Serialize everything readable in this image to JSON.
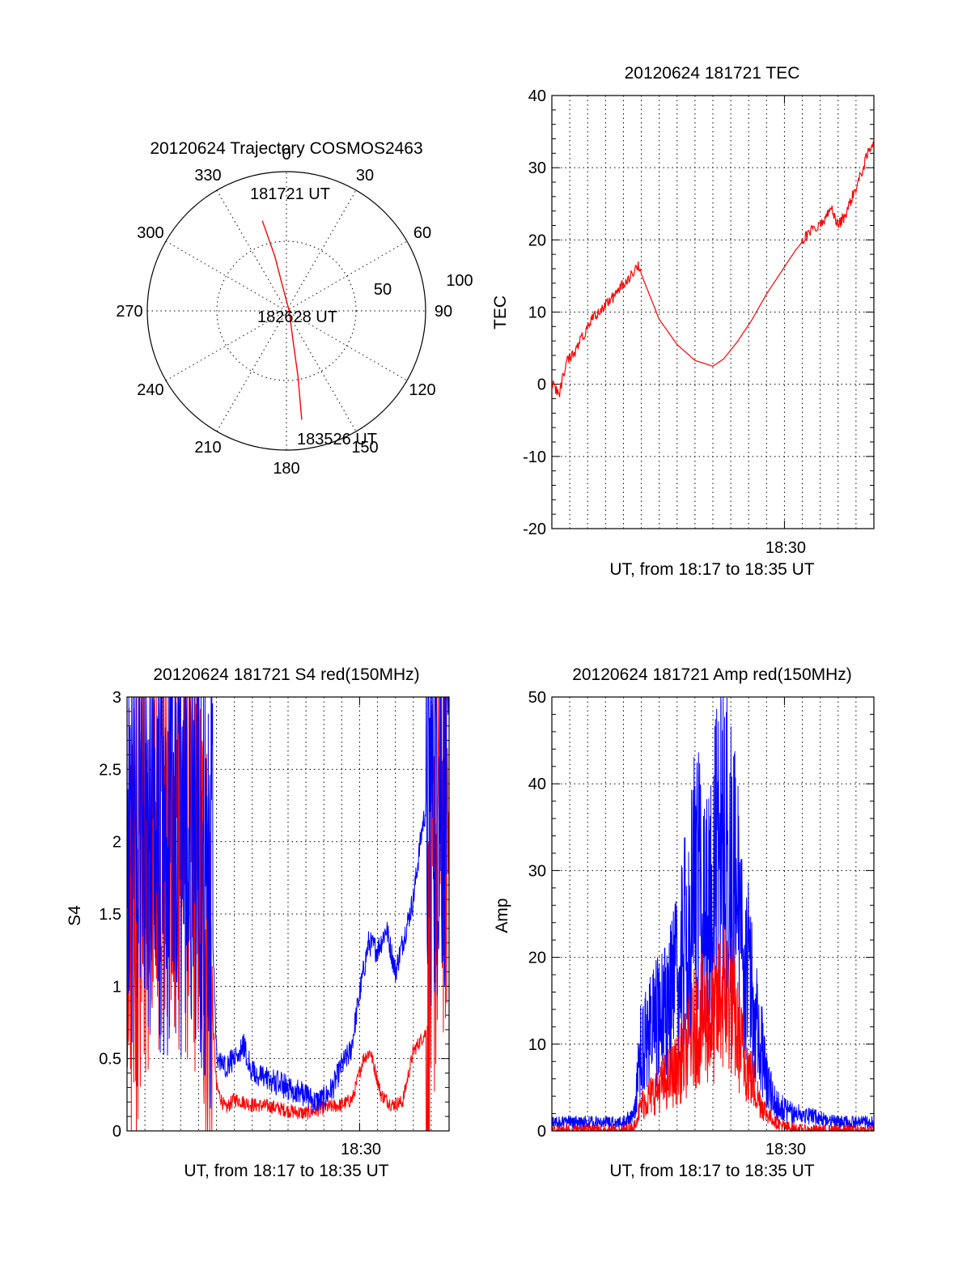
{
  "colors": {
    "red": "#ff0000",
    "blue": "#0000ff",
    "axis": "#000000"
  },
  "chart_data": [
    {
      "type": "polar",
      "title": "20120624 Trajectory COSMOS2463",
      "angle_labels": [
        "0",
        "30",
        "60",
        "90",
        "120",
        "150",
        "180",
        "210",
        "240",
        "270",
        "300",
        "330"
      ],
      "radial_labels": [
        "50",
        "100"
      ],
      "start_label": "181721 UT",
      "mid_label": "182628 UT",
      "end_label": "183526 UT",
      "series": [
        {
          "color": "red",
          "points": [
            [
              -15,
              67
            ],
            [
              -12,
              40
            ],
            [
              -9,
              18
            ],
            [
              90,
              2
            ],
            [
              167,
              20
            ],
            [
              170,
              48
            ],
            [
              172,
              79
            ]
          ]
        }
      ]
    },
    {
      "type": "line",
      "title": "20120624 181721 TEC",
      "ylabel": "TEC",
      "xlabel": "UT, from 18:17 to 18:35 UT",
      "xtick_label": "18:30",
      "xlim": [
        0,
        18
      ],
      "ylim": [
        -20,
        40
      ],
      "yticks": [
        "40",
        "30",
        "20",
        "10",
        "0",
        "-10",
        "-20"
      ],
      "series": [
        {
          "color": "red",
          "x": [
            0,
            0.4,
            0.8,
            1.2,
            1.6,
            2,
            2.4,
            2.8,
            3.2,
            3.6,
            4,
            4.4,
            4.8,
            5.2,
            6,
            7,
            8,
            9,
            9.6,
            10.4,
            11.2,
            12,
            12.8,
            13.6,
            14.4,
            15.2,
            15.6,
            16,
            16.4,
            16.8,
            17.2,
            17.6,
            18
          ],
          "y": [
            0,
            -1.5,
            3,
            4,
            6,
            8,
            9.5,
            10.5,
            11.5,
            12.5,
            14,
            15,
            16.5,
            14,
            9,
            5.5,
            3.3,
            2.5,
            3.5,
            6,
            9,
            12.5,
            15.5,
            18.5,
            21,
            22.5,
            24.5,
            22,
            23.5,
            26,
            28.5,
            31.5,
            34
          ]
        }
      ]
    },
    {
      "type": "line",
      "title": "20120624 181721 S4 red(150MHz)",
      "ylabel": "S4",
      "xlabel": "UT, from 18:17 to 18:35 UT",
      "xtick_label": "18:30",
      "xlim": [
        0,
        18
      ],
      "ylim": [
        0,
        3
      ],
      "yticks": [
        "3",
        "2.5",
        "2",
        "1.5",
        "1",
        "0.5",
        "0"
      ],
      "series": [
        {
          "name": "",
          "color": "red",
          "x": [
            0,
            2,
            4,
            4.7,
            5,
            5.5,
            6,
            7,
            8,
            9,
            10,
            10.5,
            11,
            12,
            12.6,
            13.2,
            13.6,
            14.2,
            14.8,
            15.4,
            16,
            16.8,
            17.1,
            17.5,
            18
          ],
          "y": [
            1.3,
            2.2,
            1.9,
            1.0,
            0.3,
            0.15,
            0.22,
            0.18,
            0.17,
            0.14,
            0.12,
            0.14,
            0.16,
            0.18,
            0.22,
            0.5,
            0.55,
            0.25,
            0.18,
            0.2,
            0.55,
            0.7,
            1.6,
            2.1,
            2.2
          ]
        },
        {
          "name": "",
          "color": "blue",
          "x": [
            0,
            2,
            4,
            4.7,
            5,
            5.5,
            6,
            6.5,
            7,
            8,
            9,
            10,
            10.5,
            11,
            11.5,
            12,
            12.5,
            13,
            13.5,
            14,
            14.5,
            15,
            15.5,
            16,
            16.5,
            17,
            17.5,
            18
          ],
          "y": [
            2.2,
            2.0,
            2.1,
            1.7,
            0.5,
            0.45,
            0.5,
            0.6,
            0.4,
            0.35,
            0.3,
            0.25,
            0.2,
            0.22,
            0.3,
            0.45,
            0.55,
            0.95,
            1.3,
            1.25,
            1.4,
            1.1,
            1.35,
            1.6,
            2.1,
            2.4,
            2.5,
            2.6
          ]
        }
      ]
    },
    {
      "type": "line",
      "title": "20120624 181721 Amp red(150MHz)",
      "ylabel": "Amp",
      "xlabel": "UT, from 18:17 to 18:35 UT",
      "xtick_label": "18:30",
      "xlim": [
        0,
        18
      ],
      "ylim": [
        0,
        50
      ],
      "yticks": [
        "50",
        "40",
        "30",
        "20",
        "10",
        "0"
      ],
      "series": [
        {
          "name": "",
          "color": "blue",
          "x": [
            0,
            2,
            4,
            4.6,
            5,
            6,
            7,
            7.5,
            8,
            8.5,
            9,
            9.5,
            10,
            10.5,
            11,
            11.5,
            12,
            12.5,
            13,
            13.5,
            14,
            15,
            16,
            17,
            18
          ],
          "y": [
            1,
            1,
            1,
            2,
            10,
            13,
            17,
            22,
            30,
            24,
            28,
            35,
            30,
            25,
            18,
            12,
            6,
            3,
            2.5,
            2,
            2,
            1.5,
            1,
            1,
            1
          ]
        },
        {
          "name": "",
          "color": "red",
          "x": [
            0,
            4,
            4.6,
            5,
            6,
            7,
            7.5,
            8,
            8.5,
            9,
            9.5,
            10,
            10.5,
            11,
            11.5,
            12,
            12.5,
            13,
            14,
            18
          ],
          "y": [
            0,
            0,
            0.5,
            3,
            5,
            7,
            9,
            12,
            13,
            12,
            16,
            15,
            10,
            7,
            4,
            2,
            1,
            0.5,
            0,
            0
          ]
        }
      ]
    }
  ]
}
